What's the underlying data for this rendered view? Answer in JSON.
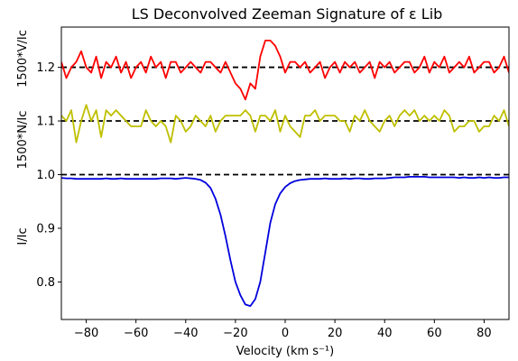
{
  "chart_data": {
    "type": "line",
    "title": "LS Deconvolved Zeeman Signature of ε Lib",
    "xlabel": "Velocity (km s⁻¹)",
    "ylabels": [
      "I/Ic",
      "1500*N/Ic",
      "1500*V/Ic"
    ],
    "xlim": [
      -90,
      90
    ],
    "ylim": [
      0.73,
      1.275
    ],
    "xticks": [
      "−80",
      "−60",
      "−40",
      "−20",
      "0",
      "20",
      "40",
      "60",
      "80"
    ],
    "xtick_values": [
      -80,
      -60,
      -40,
      -20,
      0,
      20,
      40,
      60,
      80
    ],
    "yticks": [
      "0.8",
      "0.9",
      "1.0",
      "1.1",
      "1.2"
    ],
    "ytick_values": [
      0.8,
      0.9,
      1.0,
      1.1,
      1.2
    ],
    "reference_lines": [
      {
        "y": 1.2,
        "style": "dashed",
        "color": "#000000"
      },
      {
        "y": 1.1,
        "style": "dashed",
        "color": "#000000"
      },
      {
        "y": 1.0,
        "style": "dashed",
        "color": "#000000"
      }
    ],
    "x": [
      -90,
      -88,
      -86,
      -84,
      -82,
      -80,
      -78,
      -76,
      -74,
      -72,
      -70,
      -68,
      -66,
      -64,
      -62,
      -60,
      -58,
      -56,
      -54,
      -52,
      -50,
      -48,
      -46,
      -44,
      -42,
      -40,
      -38,
      -36,
      -34,
      -32,
      -30,
      -28,
      -26,
      -24,
      -22,
      -20,
      -18,
      -16,
      -14,
      -12,
      -10,
      -8,
      -6,
      -4,
      -2,
      0,
      2,
      4,
      6,
      8,
      10,
      12,
      14,
      16,
      18,
      20,
      22,
      24,
      26,
      28,
      30,
      32,
      34,
      36,
      38,
      40,
      42,
      44,
      46,
      48,
      50,
      52,
      54,
      56,
      58,
      60,
      62,
      64,
      66,
      68,
      70,
      72,
      74,
      76,
      78,
      80,
      82,
      84,
      86,
      88,
      90
    ],
    "series": [
      {
        "color": "#ff0000",
        "values": [
          1.21,
          1.18,
          1.2,
          1.21,
          1.23,
          1.2,
          1.19,
          1.22,
          1.18,
          1.21,
          1.2,
          1.22,
          1.19,
          1.21,
          1.18,
          1.2,
          1.21,
          1.19,
          1.22,
          1.2,
          1.21,
          1.18,
          1.21,
          1.21,
          1.19,
          1.2,
          1.21,
          1.2,
          1.19,
          1.21,
          1.21,
          1.2,
          1.19,
          1.21,
          1.19,
          1.17,
          1.16,
          1.14,
          1.17,
          1.16,
          1.22,
          1.25,
          1.25,
          1.24,
          1.22,
          1.19,
          1.21,
          1.21,
          1.2,
          1.21,
          1.19,
          1.2,
          1.21,
          1.18,
          1.2,
          1.21,
          1.19,
          1.21,
          1.2,
          1.21,
          1.19,
          1.2,
          1.21,
          1.18,
          1.21,
          1.2,
          1.21,
          1.19,
          1.2,
          1.21,
          1.21,
          1.19,
          1.2,
          1.22,
          1.19,
          1.21,
          1.2,
          1.22,
          1.19,
          1.2,
          1.21,
          1.2,
          1.22,
          1.19,
          1.2,
          1.21,
          1.21,
          1.19,
          1.2,
          1.22,
          1.19
        ]
      },
      {
        "color": "#bfbf00",
        "values": [
          1.11,
          1.1,
          1.12,
          1.06,
          1.1,
          1.13,
          1.1,
          1.12,
          1.07,
          1.12,
          1.11,
          1.12,
          1.11,
          1.1,
          1.09,
          1.09,
          1.09,
          1.12,
          1.1,
          1.09,
          1.1,
          1.09,
          1.06,
          1.11,
          1.1,
          1.08,
          1.09,
          1.11,
          1.1,
          1.09,
          1.11,
          1.08,
          1.1,
          1.11,
          1.11,
          1.11,
          1.11,
          1.12,
          1.11,
          1.08,
          1.11,
          1.11,
          1.1,
          1.12,
          1.08,
          1.11,
          1.09,
          1.08,
          1.07,
          1.11,
          1.11,
          1.12,
          1.1,
          1.11,
          1.11,
          1.11,
          1.1,
          1.1,
          1.08,
          1.11,
          1.1,
          1.12,
          1.1,
          1.09,
          1.08,
          1.1,
          1.11,
          1.09,
          1.11,
          1.12,
          1.11,
          1.12,
          1.1,
          1.11,
          1.1,
          1.11,
          1.1,
          1.12,
          1.11,
          1.08,
          1.09,
          1.09,
          1.1,
          1.1,
          1.08,
          1.09,
          1.09,
          1.11,
          1.1,
          1.12,
          1.09
        ]
      },
      {
        "color": "#0000dd",
        "values": [
          0.994,
          0.993,
          0.993,
          0.992,
          0.992,
          0.992,
          0.992,
          0.992,
          0.992,
          0.993,
          0.992,
          0.992,
          0.993,
          0.992,
          0.992,
          0.992,
          0.992,
          0.992,
          0.992,
          0.992,
          0.993,
          0.993,
          0.993,
          0.992,
          0.993,
          0.994,
          0.993,
          0.992,
          0.99,
          0.985,
          0.975,
          0.955,
          0.925,
          0.885,
          0.84,
          0.8,
          0.775,
          0.758,
          0.755,
          0.768,
          0.8,
          0.855,
          0.91,
          0.945,
          0.965,
          0.977,
          0.984,
          0.988,
          0.99,
          0.991,
          0.992,
          0.992,
          0.992,
          0.993,
          0.992,
          0.992,
          0.992,
          0.993,
          0.992,
          0.993,
          0.993,
          0.992,
          0.992,
          0.993,
          0.993,
          0.993,
          0.994,
          0.995,
          0.995,
          0.995,
          0.996,
          0.996,
          0.996,
          0.996,
          0.995,
          0.995,
          0.995,
          0.995,
          0.995,
          0.995,
          0.994,
          0.995,
          0.994,
          0.994,
          0.995,
          0.994,
          0.995,
          0.994,
          0.994,
          0.995,
          0.995
        ]
      }
    ],
    "grid": false,
    "legend": "none"
  }
}
